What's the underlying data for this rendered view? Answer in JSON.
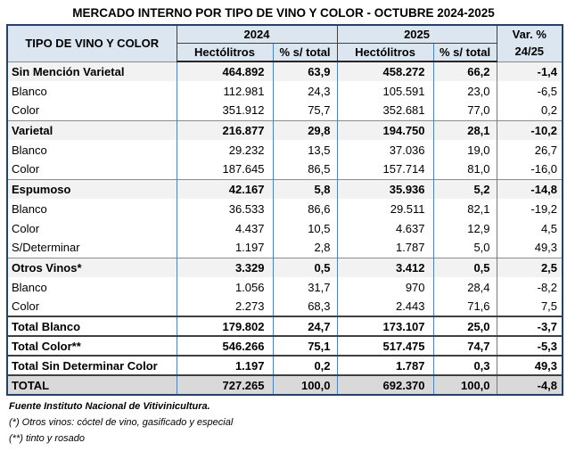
{
  "title": "MERCADO INTERNO POR TIPO DE VINO Y COLOR - OCTUBRE 2024-2025",
  "table": {
    "corner_header": "TIPO DE VINO Y COLOR",
    "year_2024": "2024",
    "year_2025": "2025",
    "subheader_hectolitros": "Hectólitros",
    "subheader_pct": "% s/ total",
    "var_header_line1": "Var. %",
    "var_header_line2": "24/25",
    "columns": [
      "Tipo de vino y color",
      "Hectólitros 2024",
      "% s/ total 2024",
      "Hectólitros 2025",
      "% s/ total 2025",
      "Var. % 24/25"
    ],
    "rows": [
      {
        "label": "Sin Mención Varietal",
        "style": "group",
        "values": [
          "464.892",
          "63,9",
          "458.272",
          "66,2",
          "-1,4"
        ]
      },
      {
        "label": "Blanco",
        "style": "detail",
        "values": [
          "112.981",
          "24,3",
          "105.591",
          "23,0",
          "-6,5"
        ]
      },
      {
        "label": "Color",
        "style": "detail",
        "values": [
          "351.912",
          "75,7",
          "352.681",
          "77,0",
          "0,2"
        ]
      },
      {
        "label": "Varietal",
        "style": "group",
        "values": [
          "216.877",
          "29,8",
          "194.750",
          "28,1",
          "-10,2"
        ]
      },
      {
        "label": "Blanco",
        "style": "detail",
        "values": [
          "29.232",
          "13,5",
          "37.036",
          "19,0",
          "26,7"
        ]
      },
      {
        "label": "Color",
        "style": "detail",
        "values": [
          "187.645",
          "86,5",
          "157.714",
          "81,0",
          "-16,0"
        ]
      },
      {
        "label": "Espumoso",
        "style": "group",
        "values": [
          "42.167",
          "5,8",
          "35.936",
          "5,2",
          "-14,8"
        ]
      },
      {
        "label": "Blanco",
        "style": "detail",
        "values": [
          "36.533",
          "86,6",
          "29.511",
          "82,1",
          "-19,2"
        ]
      },
      {
        "label": "Color",
        "style": "detail",
        "values": [
          "4.437",
          "10,5",
          "4.637",
          "12,9",
          "4,5"
        ]
      },
      {
        "label": "S/Determinar",
        "style": "detail",
        "values": [
          "1.197",
          "2,8",
          "1.787",
          "5,0",
          "49,3"
        ]
      },
      {
        "label": "Otros Vinos*",
        "style": "group",
        "values": [
          "3.329",
          "0,5",
          "3.412",
          "0,5",
          "2,5"
        ]
      },
      {
        "label": "Blanco",
        "style": "detail",
        "values": [
          "1.056",
          "31,7",
          "970",
          "28,4",
          "-8,2"
        ]
      },
      {
        "label": "Color",
        "style": "detail",
        "values": [
          "2.273",
          "68,3",
          "2.443",
          "71,6",
          "7,5"
        ]
      },
      {
        "label": "Total Blanco",
        "style": "total",
        "values": [
          "179.802",
          "24,7",
          "173.107",
          "25,0",
          "-3,7"
        ]
      },
      {
        "label": "Total Color**",
        "style": "total",
        "values": [
          "546.266",
          "75,1",
          "517.475",
          "74,7",
          "-5,3"
        ]
      },
      {
        "label": "Total Sin Determinar Color",
        "style": "total",
        "values": [
          "1.197",
          "0,2",
          "1.787",
          "0,3",
          "49,3"
        ]
      },
      {
        "label": "TOTAL",
        "style": "grand",
        "values": [
          "727.265",
          "100,0",
          "692.370",
          "100,0",
          "-4,8"
        ]
      }
    ]
  },
  "footnotes": {
    "source": "Fuente Instituto Nacional de Vitivinicultura.",
    "note1": "(*) Otros vinos: cóctel de vino, gasificado y especial",
    "note2": "(**) tinto y rosado"
  },
  "colors": {
    "header_bg": "#dce6f1",
    "group_row_bg": "#f2f2f2",
    "grand_total_bg": "#d9d9d9",
    "inner_border_blue": "#4f81bd",
    "outer_border_dark": "#24416b"
  }
}
